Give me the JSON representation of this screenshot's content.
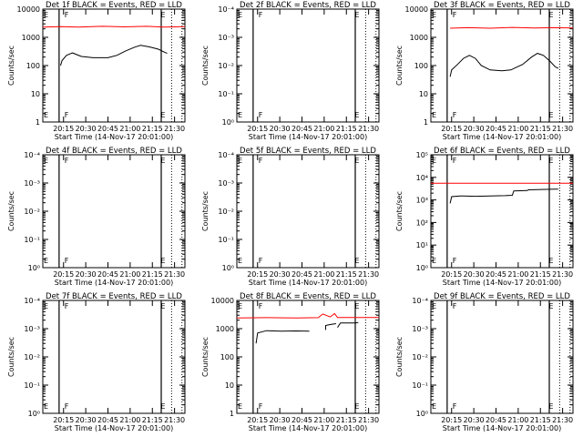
{
  "chart_data": [
    {
      "type": "line",
      "title": "Det 1f BLACK = Events, RED = LLD",
      "xlabel": "Start Time (14-Nov-17 20:01:00)",
      "ylabel": "Counts/sec",
      "yscale": "log",
      "ylim_exp": [
        0,
        4
      ],
      "ytick_labels": [
        "1",
        "10",
        "100",
        "1000",
        "10000"
      ],
      "xtick_labels": [
        "20:15",
        "20:30",
        "20:45",
        "21:00",
        "21:15",
        "21:30"
      ],
      "flag_labels": [
        "F",
        "E"
      ],
      "series": [
        {
          "color": "#ff0000",
          "points": [
            [
              0,
              2300
            ],
            [
              12,
              2400
            ],
            [
              24,
              2300
            ],
            [
              40,
              2450
            ],
            [
              55,
              2350
            ],
            [
              70,
              2450
            ],
            [
              82,
              2300
            ],
            [
              96,
              2400
            ]
          ]
        },
        {
          "color": "#000000",
          "points": [
            [
              12,
              100
            ],
            [
              13,
              150
            ],
            [
              16,
              230
            ],
            [
              20,
              280
            ],
            [
              26,
              210
            ],
            [
              34,
              190
            ],
            [
              44,
              190
            ],
            [
              50,
              230
            ],
            [
              56,
              330
            ],
            [
              62,
              450
            ],
            [
              66,
              520
            ],
            [
              72,
              460
            ],
            [
              78,
              380
            ],
            [
              82,
              300
            ],
            [
              84,
              270
            ]
          ]
        }
      ]
    },
    {
      "type": "line",
      "title": "Det 2f BLACK = Events, RED = LLD",
      "xlabel": "Start Time (14-Nov-17 20:01:00)",
      "ylabel": "Counts/sec",
      "yscale": "log",
      "ylim_exp": [
        0,
        4
      ],
      "ytick_labels": [
        "10⁰",
        "10⁻¹",
        "10⁻²",
        "10⁻³",
        "10⁻⁴"
      ],
      "xtick_labels": [
        "20:15",
        "20:30",
        "20:45",
        "21:00",
        "21:15",
        "21:30"
      ],
      "flag_labels": [
        "F",
        "E"
      ],
      "series": []
    },
    {
      "type": "line",
      "title": "Det 3f BLACK = Events, RED = LLD",
      "xlabel": "Start Time (14-Nov-17 20:01:00)",
      "ylabel": "Counts/sec",
      "yscale": "log",
      "ylim_exp": [
        0,
        4
      ],
      "ytick_labels": [
        "1",
        "10",
        "100",
        "1000",
        "10000"
      ],
      "xtick_labels": [
        "20:15",
        "20:30",
        "20:45",
        "21:00",
        "21:15",
        "21:30"
      ],
      "flag_labels": [
        "F",
        "E"
      ],
      "series": [
        {
          "color": "#ff0000",
          "points": [
            [
              13,
              2100
            ],
            [
              25,
              2200
            ],
            [
              40,
              2100
            ],
            [
              55,
              2250
            ],
            [
              70,
              2150
            ],
            [
              84,
              2200
            ],
            [
              96,
              2150
            ]
          ]
        },
        {
          "color": "#000000",
          "points": [
            [
              13,
              40
            ],
            [
              14,
              70
            ],
            [
              18,
              110
            ],
            [
              22,
              180
            ],
            [
              26,
              230
            ],
            [
              30,
              180
            ],
            [
              34,
              100
            ],
            [
              40,
              70
            ],
            [
              48,
              65
            ],
            [
              54,
              70
            ],
            [
              62,
              110
            ],
            [
              68,
              200
            ],
            [
              72,
              270
            ],
            [
              76,
              230
            ],
            [
              80,
              150
            ],
            [
              84,
              90
            ],
            [
              86,
              80
            ]
          ]
        }
      ]
    },
    {
      "type": "line",
      "title": "Det 4f BLACK = Events, RED = LLD",
      "xlabel": "Start Time (14-Nov-17 20:01:00)",
      "ylabel": "Counts/sec",
      "yscale": "log",
      "ylim_exp": [
        0,
        4
      ],
      "ytick_labels": [
        "10⁰",
        "10⁻¹",
        "10⁻²",
        "10⁻³",
        "10⁻⁴"
      ],
      "xtick_labels": [
        "20:15",
        "20:30",
        "20:45",
        "21:00",
        "21:15",
        "21:30"
      ],
      "flag_labels": [
        "F",
        "E"
      ],
      "series": []
    },
    {
      "type": "line",
      "title": "Det 5f BLACK = Events, RED = LLD",
      "xlabel": "Start Time (14-Nov-17 20:01:00)",
      "ylabel": "Counts/sec",
      "yscale": "log",
      "ylim_exp": [
        0,
        4
      ],
      "ytick_labels": [
        "10⁰",
        "10⁻¹",
        "10⁻²",
        "10⁻³",
        "10⁻⁴"
      ],
      "xtick_labels": [
        "20:15",
        "20:30",
        "20:45",
        "21:00",
        "21:15",
        "21:30"
      ],
      "flag_labels": [
        "F",
        "E"
      ],
      "series": []
    },
    {
      "type": "line",
      "title": "Det 6f BLACK = Events, RED = LLD",
      "xlabel": "Start Time (14-Nov-17 20:01:00)",
      "ylabel": "Counts/sec",
      "yscale": "log",
      "ylim_exp": [
        0,
        5
      ],
      "ytick_labels": [
        "10⁰",
        "10¹",
        "10²",
        "10³",
        "10⁴",
        "10⁵"
      ],
      "xtick_labels": [
        "20:15",
        "20:30",
        "20:45",
        "21:00",
        "21:15",
        "21:30"
      ],
      "flag_labels": [
        "F",
        "E"
      ],
      "series": [
        {
          "color": "#ff0000",
          "points": [
            [
              0,
              5500
            ],
            [
              20,
              5500
            ],
            [
              40,
              5500
            ],
            [
              60,
              5500
            ],
            [
              80,
              5500
            ],
            [
              96,
              5500
            ]
          ]
        },
        {
          "color": "#000000",
          "points": [
            [
              13,
              700
            ],
            [
              14,
              1400
            ],
            [
              20,
              1500
            ],
            [
              30,
              1450
            ],
            [
              40,
              1500
            ],
            [
              50,
              1550
            ],
            [
              55,
              1600
            ],
            [
              56,
              2500
            ],
            [
              65,
              2600
            ],
            [
              66,
              2800
            ],
            [
              75,
              2900
            ],
            [
              84,
              3000
            ],
            [
              86,
              3000
            ]
          ]
        }
      ]
    },
    {
      "type": "line",
      "title": "Det 7f BLACK = Events, RED = LLD",
      "xlabel": "Start Time (14-Nov-17 20:01:00)",
      "ylabel": "Counts/sec",
      "yscale": "log",
      "ylim_exp": [
        0,
        4
      ],
      "ytick_labels": [
        "10⁰",
        "10⁻¹",
        "10⁻²",
        "10⁻³",
        "10⁻⁴"
      ],
      "xtick_labels": [
        "20:15",
        "20:30",
        "20:45",
        "21:00",
        "21:15",
        "21:30"
      ],
      "flag_labels": [
        "F",
        "E"
      ],
      "series": []
    },
    {
      "type": "line",
      "title": "Det 8f BLACK = Events, RED = LLD",
      "xlabel": "Start Time (14-Nov-17 20:01:00)",
      "ylabel": "Counts/sec",
      "yscale": "log",
      "ylim_exp": [
        0,
        4
      ],
      "ytick_labels": [
        "1",
        "10",
        "100",
        "1000",
        "10000"
      ],
      "xtick_labels": [
        "20:15",
        "20:30",
        "20:45",
        "21:00",
        "21:15",
        "21:30"
      ],
      "flag_labels": [
        "F",
        "E"
      ],
      "series": [
        {
          "color": "#ff0000",
          "points": [
            [
              0,
              2400
            ],
            [
              20,
              2450
            ],
            [
              40,
              2400
            ],
            [
              55,
              2450
            ],
            [
              58,
              3300
            ],
            [
              63,
              2600
            ],
            [
              66,
              3400
            ],
            [
              68,
              2500
            ],
            [
              80,
              2500
            ],
            [
              96,
              2500
            ]
          ]
        },
        {
          "color": "#000000",
          "points": [
            [
              13,
              300
            ],
            [
              14,
              700
            ],
            [
              20,
              850
            ],
            [
              30,
              820
            ],
            [
              40,
              830
            ],
            [
              49,
              820
            ]
          ]
        },
        {
          "color": "#000000",
          "points": [
            [
              60,
              900
            ],
            [
              60,
              1300
            ],
            [
              63,
              1400
            ],
            [
              67,
              1500
            ]
          ]
        },
        {
          "color": "#000000",
          "points": [
            [
              68,
              1100
            ],
            [
              70,
              1600
            ],
            [
              80,
              1600
            ],
            [
              82,
              1650
            ]
          ]
        }
      ]
    },
    {
      "type": "line",
      "title": "Det 9f BLACK = Events, RED = LLD",
      "xlabel": "Start Time (14-Nov-17 20:01:00)",
      "ylabel": "Counts/sec",
      "yscale": "log",
      "ylim_exp": [
        0,
        4
      ],
      "ytick_labels": [
        "10⁰",
        "10⁻¹",
        "10⁻²",
        "10⁻³",
        "10⁻⁴"
      ],
      "xtick_labels": [
        "20:15",
        "20:30",
        "20:45",
        "21:00",
        "21:15",
        "21:30"
      ],
      "flag_labels": [
        "F",
        "E"
      ],
      "series": []
    }
  ]
}
